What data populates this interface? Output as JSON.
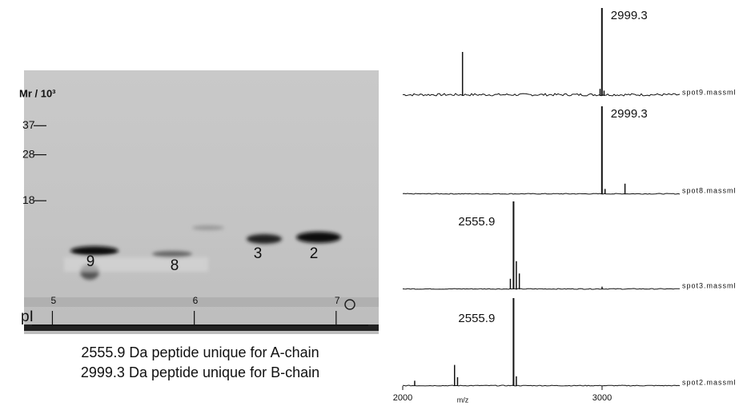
{
  "gel": {
    "mr_label": "Mr / 10³",
    "mr_scale": "log",
    "ylim": [
      63,
      5
    ],
    "yticks": [
      37,
      28,
      18
    ],
    "pi_label": "pI",
    "xlim": [
      4.8,
      7.3
    ],
    "xticks": [
      5,
      6,
      7
    ],
    "spots": [
      "9",
      "8",
      "3",
      "2"
    ]
  },
  "captions": [
    "2555.9 Da peptide unique for A-chain",
    "2999.3 Da peptide unique for B-chain"
  ],
  "spectra": {
    "x_label": "m/z",
    "xlim": [
      2000,
      3715
    ],
    "xticks": [
      2000,
      3000
    ],
    "panels": [
      {
        "name": "spot9.massml",
        "peak": 2999.3,
        "x": [
          2300,
          2990,
          3010
        ],
        "values": [
          50,
          8,
          6
        ]
      },
      {
        "name": "spot8.massml",
        "peak": 2999.3,
        "x": [
          3015,
          3115
        ],
        "values": [
          6,
          12
        ]
      },
      {
        "name": "spot3.massml",
        "peak": 2555.9,
        "x": [
          2540,
          2570,
          2585,
          3000
        ],
        "values": [
          12,
          32,
          18,
          3
        ]
      },
      {
        "name": "spot2.massml",
        "peak": 2555.9,
        "x": [
          2060,
          2260,
          2275,
          2570
        ],
        "values": [
          6,
          24,
          10,
          11
        ]
      }
    ]
  }
}
